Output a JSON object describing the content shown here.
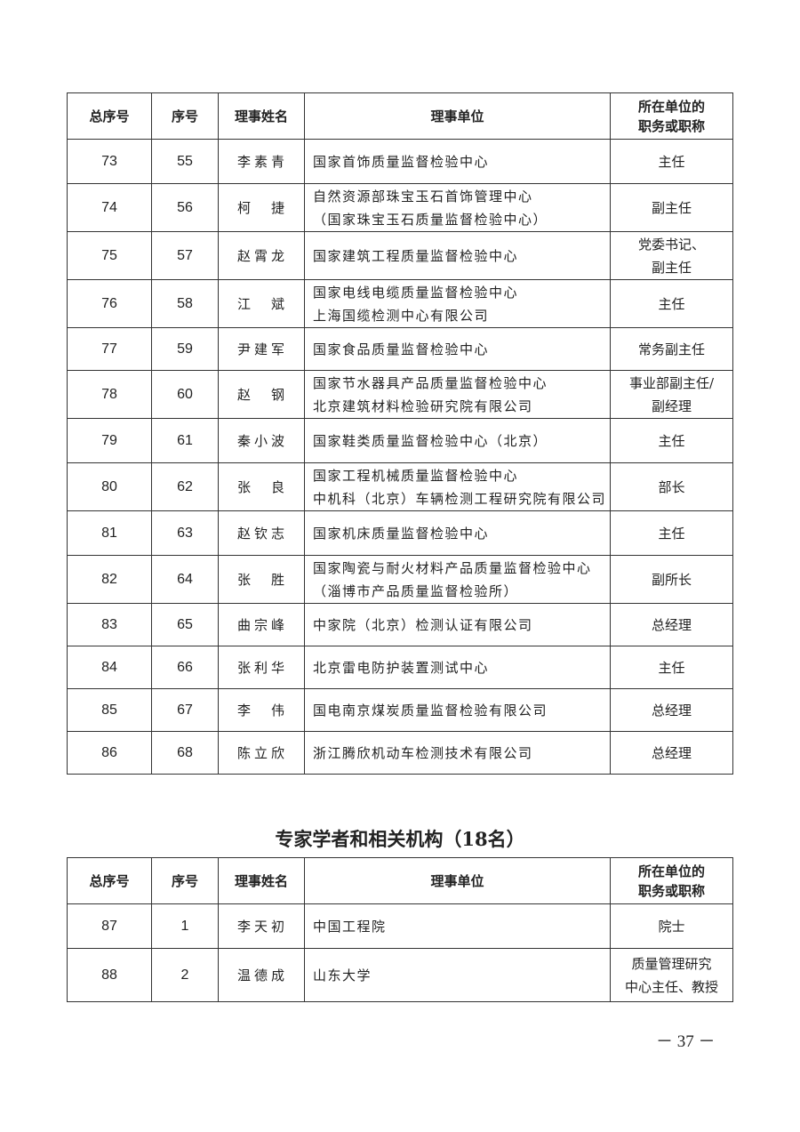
{
  "headers": [
    "总序号",
    "序号",
    "理事姓名",
    "理事单位",
    "所在单位的\n职务或职称"
  ],
  "table1": [
    {
      "total": "73",
      "seq": "55",
      "name": "李素青",
      "unit": [
        "国家首饰质量监督检验中心"
      ],
      "title": [
        "主任"
      ]
    },
    {
      "total": "74",
      "seq": "56",
      "name": "柯捷",
      "unit": [
        "自然资源部珠宝玉石首饰管理中心",
        "（国家珠宝玉石质量监督检验中心）"
      ],
      "title": [
        "副主任"
      ]
    },
    {
      "total": "75",
      "seq": "57",
      "name": "赵霄龙",
      "unit": [
        "国家建筑工程质量监督检验中心"
      ],
      "title": [
        "党委书记、",
        "副主任"
      ]
    },
    {
      "total": "76",
      "seq": "58",
      "name": "江斌",
      "unit": [
        "国家电线电缆质量监督检验中心",
        "上海国缆检测中心有限公司"
      ],
      "title": [
        "主任"
      ]
    },
    {
      "total": "77",
      "seq": "59",
      "name": "尹建军",
      "unit": [
        "国家食品质量监督检验中心"
      ],
      "title": [
        "常务副主任"
      ]
    },
    {
      "total": "78",
      "seq": "60",
      "name": "赵钢",
      "unit": [
        "国家节水器具产品质量监督检验中心",
        "北京建筑材料检验研究院有限公司"
      ],
      "title": [
        "事业部副主任/",
        "副经理"
      ]
    },
    {
      "total": "79",
      "seq": "61",
      "name": "秦小波",
      "unit": [
        "国家鞋类质量监督检验中心（北京）"
      ],
      "title": [
        "主任"
      ]
    },
    {
      "total": "80",
      "seq": "62",
      "name": "张良",
      "unit": [
        "国家工程机械质量监督检验中心",
        "中机科（北京）车辆检测工程研究院有限公司"
      ],
      "title": [
        "部长"
      ]
    },
    {
      "total": "81",
      "seq": "63",
      "name": "赵钦志",
      "unit": [
        "国家机床质量监督检验中心"
      ],
      "title": [
        "主任"
      ]
    },
    {
      "total": "82",
      "seq": "64",
      "name": "张胜",
      "unit": [
        "国家陶瓷与耐火材料产品质量监督检验中心",
        "（淄博市产品质量监督检验所）"
      ],
      "title": [
        "副所长"
      ]
    },
    {
      "total": "83",
      "seq": "65",
      "name": "曲宗峰",
      "unit": [
        "中家院（北京）检测认证有限公司"
      ],
      "title": [
        "总经理"
      ]
    },
    {
      "total": "84",
      "seq": "66",
      "name": "张利华",
      "unit": [
        "北京雷电防护装置测试中心"
      ],
      "title": [
        "主任"
      ]
    },
    {
      "total": "85",
      "seq": "67",
      "name": "李伟",
      "unit": [
        "国电南京煤炭质量监督检验有限公司"
      ],
      "title": [
        "总经理"
      ]
    },
    {
      "total": "86",
      "seq": "68",
      "name": "陈立欣",
      "unit": [
        "浙江腾欣机动车检测技术有限公司"
      ],
      "title": [
        "总经理"
      ]
    }
  ],
  "section_title": "专家学者和相关机构（18名）",
  "table2": [
    {
      "total": "87",
      "seq": "1",
      "name": "李天初",
      "unit": [
        "中国工程院"
      ],
      "title": [
        "院士"
      ]
    },
    {
      "total": "88",
      "seq": "2",
      "name": "温德成",
      "unit": [
        "山东大学"
      ],
      "title": [
        "质量管理研究",
        "中心主任、教授"
      ]
    }
  ],
  "page_number": "－ 37 －"
}
